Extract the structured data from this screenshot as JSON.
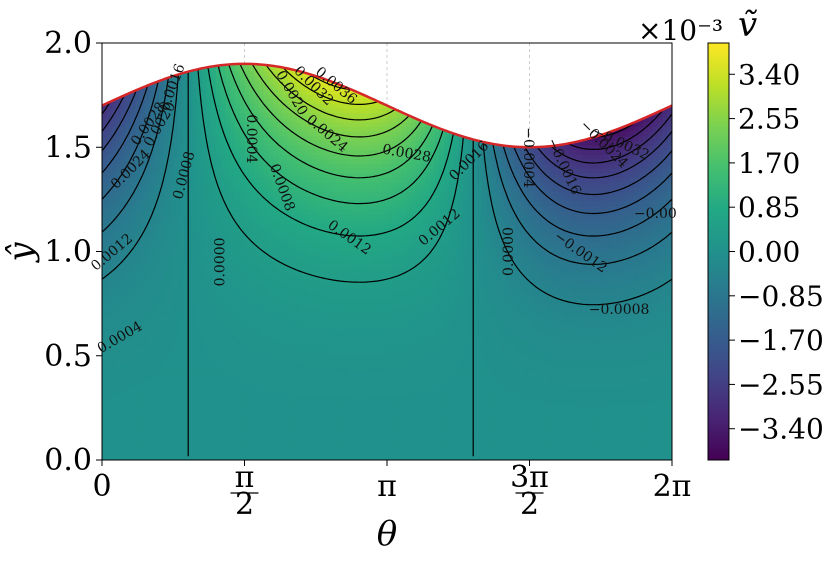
{
  "chart_data": {
    "type": "heatmap",
    "plot_kind": "filled contour with labelled contour lines",
    "xlabel": "θ",
    "ylabel": "ŷ",
    "xlim": [
      0,
      6.2832
    ],
    "ylim": [
      0,
      2
    ],
    "x_ticks": [
      {
        "value": 0,
        "label": "0"
      },
      {
        "value": 1.5708,
        "label": "π/2"
      },
      {
        "value": 3.1416,
        "label": "π"
      },
      {
        "value": 4.7124,
        "label": "3π/2"
      },
      {
        "value": 6.2832,
        "label": "2π"
      }
    ],
    "y_ticks": [
      {
        "value": 0.0,
        "label": "0.0"
      },
      {
        "value": 0.5,
        "label": "0.5"
      },
      {
        "value": 1.0,
        "label": "1.0"
      },
      {
        "value": 1.5,
        "label": "1.5"
      },
      {
        "value": 2.0,
        "label": "2.0"
      }
    ],
    "boundary": {
      "description": "upper wall ŷ = 1.7 + 0.2·sin(θ)",
      "color": "#d62728",
      "mean": 1.7,
      "amplitude": 0.2
    },
    "colorbar": {
      "label": "ṽ",
      "scale_text": "×10⁻³",
      "colormap": "viridis",
      "range": [
        -4.0,
        4.0
      ],
      "ticks": [
        -3.4,
        -2.55,
        -1.7,
        -0.85,
        0.0,
        0.85,
        1.7,
        2.55,
        3.4
      ],
      "tick_labels": [
        "−3.40",
        "−2.55",
        "−1.70",
        "−0.85",
        "0.00",
        "0.85",
        "1.70",
        "2.55",
        "3.40"
      ]
    },
    "contour_levels": [
      -0.0036,
      -0.0032,
      -0.0028,
      -0.0024,
      -0.002,
      -0.0016,
      -0.0012,
      -0.0008,
      -0.0004,
      0.0,
      0.0004,
      0.0008,
      0.0012,
      0.0016,
      0.002,
      0.0024,
      0.0028,
      0.0032,
      0.0036
    ],
    "contour_labels": [
      {
        "text": "0.0028",
        "x": 0.55,
        "y": 1.6,
        "angle": -55
      },
      {
        "text": "0.0024",
        "x": 0.35,
        "y": 1.38,
        "angle": -45
      },
      {
        "text": "0.0020",
        "x": 0.68,
        "y": 1.6,
        "angle": -60
      },
      {
        "text": "0.0016",
        "x": 0.82,
        "y": 1.78,
        "angle": -70
      },
      {
        "text": "0.0012",
        "x": 0.14,
        "y": 0.98,
        "angle": -40
      },
      {
        "text": "0.0008",
        "x": 0.95,
        "y": 1.36,
        "angle": -75
      },
      {
        "text": "0.0004",
        "x": 0.22,
        "y": 0.57,
        "angle": -30
      },
      {
        "text": "0.0004",
        "x": 1.6,
        "y": 1.54,
        "angle": 90
      },
      {
        "text": "0.0008",
        "x": 1.94,
        "y": 1.3,
        "angle": 70
      },
      {
        "text": "0.0000",
        "x": 1.35,
        "y": 0.95,
        "angle": -90
      },
      {
        "text": "0.0020",
        "x": 2.05,
        "y": 1.75,
        "angle": 60
      },
      {
        "text": "0.0032",
        "x": 2.3,
        "y": 1.78,
        "angle": 45
      },
      {
        "text": "0.0036",
        "x": 2.55,
        "y": 1.78,
        "angle": 40
      },
      {
        "text": "0.0024",
        "x": 2.45,
        "y": 1.55,
        "angle": 40
      },
      {
        "text": "0.0028",
        "x": 3.35,
        "y": 1.45,
        "angle": 10
      },
      {
        "text": "0.0016",
        "x": 4.08,
        "y": 1.42,
        "angle": -45
      },
      {
        "text": "0.0012",
        "x": 3.75,
        "y": 1.1,
        "angle": -40
      },
      {
        "text": "0.0012",
        "x": 2.7,
        "y": 1.05,
        "angle": 35
      },
      {
        "text": "0.0000",
        "x": 4.53,
        "y": 1.0,
        "angle": -90
      },
      {
        "text": "−0.0004",
        "x": 4.65,
        "y": 1.45,
        "angle": 90
      },
      {
        "text": "−0.0016",
        "x": 5.05,
        "y": 1.4,
        "angle": 65
      },
      {
        "text": "−0.0024",
        "x": 5.5,
        "y": 1.5,
        "angle": 45
      },
      {
        "text": "−0.0032",
        "x": 5.7,
        "y": 1.5,
        "angle": 25
      },
      {
        "text": "−0.0012",
        "x": 5.25,
        "y": 0.98,
        "angle": 35
      },
      {
        "text": "−0.0008",
        "x": 5.7,
        "y": 0.7,
        "angle": 0
      },
      {
        "text": "−0.00",
        "x": 6.1,
        "y": 1.16,
        "angle": 0
      }
    ]
  }
}
